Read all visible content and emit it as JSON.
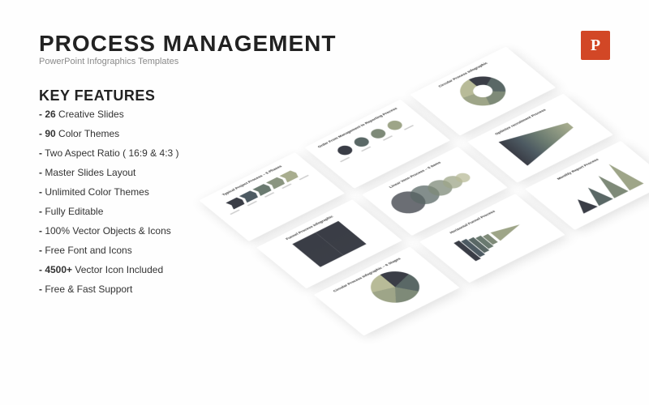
{
  "title": "PROCESS MANAGEMENT",
  "subtitle": "PowerPoint Infographics Templates",
  "section": "KEY FEATURES",
  "badge": "P",
  "features": [
    {
      "bold": "- 26",
      "rest": " Creative Slides"
    },
    {
      "bold": "- 90",
      "rest": " Color Themes"
    },
    {
      "bold": "-",
      "rest": " Two Aspect Ratio ( 16:9 & 4:3 )"
    },
    {
      "bold": "-",
      "rest": " Master Slides Layout"
    },
    {
      "bold": "-",
      "rest": " Unlimited Color Themes"
    },
    {
      "bold": "-",
      "rest": " Fully Editable"
    },
    {
      "bold": "-",
      "rest": " 100% Vector Objects & Icons"
    },
    {
      "bold": "-",
      "rest": " Free Font and Icons"
    },
    {
      "bold": "- 4500+",
      "rest": " Vector Icon Included"
    },
    {
      "bold": "-",
      "rest": " Free & Fast Support"
    }
  ],
  "tiles": {
    "t1": "Typical Project Process – 5 Phases",
    "t2": "Order From Management to Reporting Process",
    "t3": "Circular Process Infographic",
    "t4": "Funnel Process Infographic",
    "t5": "Linear Venn Process – 5 Items",
    "t6": "Optimize recruitment Process",
    "t7": "Circular Process Infographic – 6 Stages",
    "t8": "Horizontal Funnel Process",
    "t9": "Monthly Report Process"
  },
  "palette": {
    "c1": "#3a3d46",
    "c2": "#4d5a62",
    "c3": "#5a6866",
    "c4": "#6a7a70",
    "c5": "#7e8a78",
    "c6": "#8a9580",
    "c7": "#9ea588",
    "c8": "#a8ad8e",
    "c9": "#b8bb98",
    "accent": "#d24726",
    "bg": "#fefefe",
    "text": "#222",
    "muted": "#8a8a8a"
  }
}
